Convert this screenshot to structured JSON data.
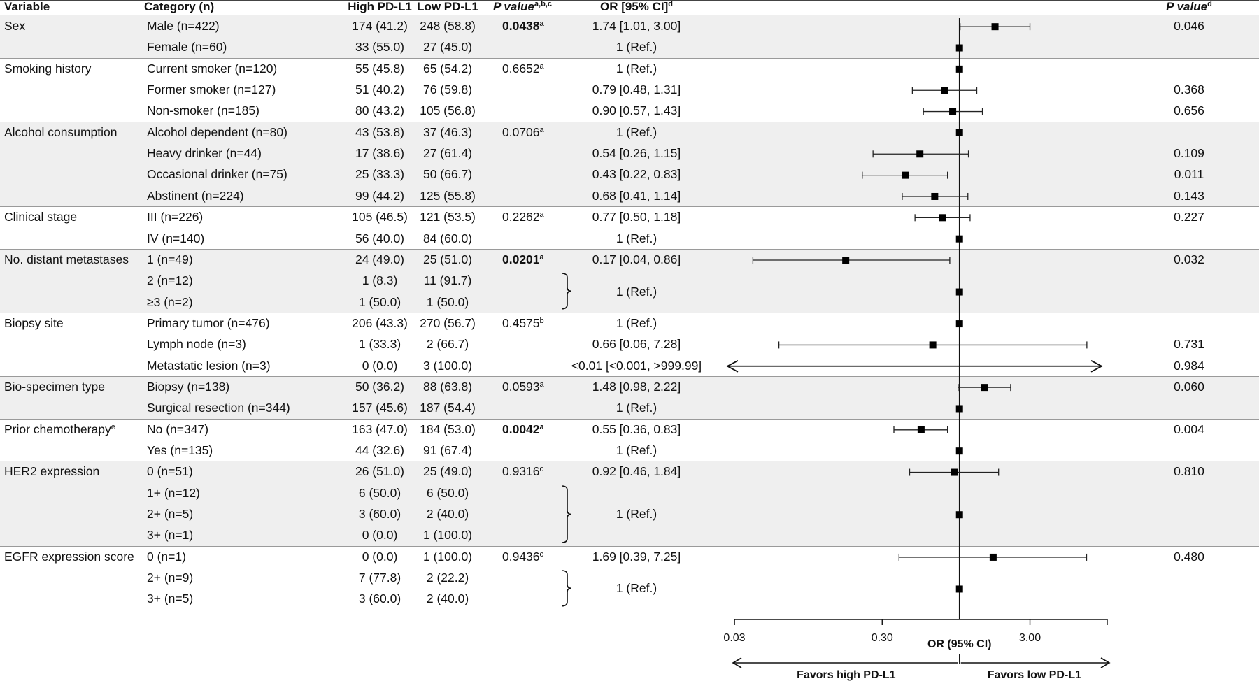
{
  "headers": {
    "variable": "Variable",
    "category": "Category (n)",
    "high": "High PD-L1",
    "low": "Low PD-L1",
    "p_value": "P value",
    "p_value_sup": "a,b,c",
    "or_ci": "OR [95% CI]",
    "or_ci_sup": "d",
    "p_value_right": "P value",
    "p_value_right_sup": "d"
  },
  "groups": [
    {
      "variable": "Sex",
      "variable_sup": "",
      "p_value": "0.0438",
      "p_sup": "a",
      "p_bold": true,
      "shaded": true,
      "rows": [
        {
          "category": "Male (n=422)",
          "high": "174 (41.2)",
          "low": "248 (58.8)",
          "or": "1.74 [1.01, 3.00]",
          "p": "0.046"
        },
        {
          "category": "Female (n=60)",
          "high": "33 (55.0)",
          "low": "27 (45.0)",
          "or": "1 (Ref.)",
          "p": ""
        }
      ]
    },
    {
      "variable": "Smoking history",
      "variable_sup": "",
      "p_value": "0.6652",
      "p_sup": "a",
      "p_bold": false,
      "shaded": false,
      "rows": [
        {
          "category": "Current smoker (n=120)",
          "high": "55 (45.8)",
          "low": "65 (54.2)",
          "or": "1 (Ref.)",
          "p": ""
        },
        {
          "category": "Former smoker (n=127)",
          "high": "51 (40.2)",
          "low": "76 (59.8)",
          "or": "0.79 [0.48, 1.31]",
          "p": "0.368"
        },
        {
          "category": "Non-smoker (n=185)",
          "high": "80 (43.2)",
          "low": "105 (56.8)",
          "or": "0.90 [0.57, 1.43]",
          "p": "0.656"
        }
      ]
    },
    {
      "variable": "Alcohol consumption",
      "variable_sup": "",
      "p_value": "0.0706",
      "p_sup": "a",
      "p_bold": false,
      "shaded": true,
      "rows": [
        {
          "category": "Alcohol dependent (n=80)",
          "high": "43 (53.8)",
          "low": "37 (46.3)",
          "or": "1 (Ref.)",
          "p": ""
        },
        {
          "category": "Heavy drinker (n=44)",
          "high": "17 (38.6)",
          "low": "27 (61.4)",
          "or": "0.54 [0.26, 1.15]",
          "p": "0.109"
        },
        {
          "category": "Occasional drinker (n=75)",
          "high": "25 (33.3)",
          "low": "50 (66.7)",
          "or": "0.43 [0.22, 0.83]",
          "p": "0.011"
        },
        {
          "category": "Abstinent (n=224)",
          "high": "99 (44.2)",
          "low": "125 (55.8)",
          "or": "0.68 [0.41, 1.14]",
          "p": "0.143"
        }
      ]
    },
    {
      "variable": "Clinical stage",
      "variable_sup": "",
      "p_value": "0.2262",
      "p_sup": "a",
      "p_bold": false,
      "shaded": false,
      "rows": [
        {
          "category": "III (n=226)",
          "high": "105 (46.5)",
          "low": "121 (53.5)",
          "or": "0.77 [0.50, 1.18]",
          "p": "0.227"
        },
        {
          "category": "IV (n=140)",
          "high": "56 (40.0)",
          "low": "84 (60.0)",
          "or": "1 (Ref.)",
          "p": ""
        }
      ]
    },
    {
      "variable": "No. distant metastases",
      "variable_sup": "",
      "p_value": "0.0201",
      "p_sup": "a",
      "p_bold": true,
      "shaded": true,
      "rows": [
        {
          "category": "1 (n=49)",
          "high": "24 (49.0)",
          "low": "25 (51.0)",
          "or": "0.17 [0.04, 0.86]",
          "p": "0.032"
        },
        {
          "category": "2 (n=12)",
          "high": "1 (8.3)",
          "low": "11 (91.7)",
          "or": "",
          "p": ""
        },
        {
          "category": "≥3 (n=2)",
          "high": "1 (50.0)",
          "low": "1 (50.0)",
          "or": "",
          "p": ""
        }
      ],
      "brace": {
        "from": 1,
        "to": 2,
        "label": "1 (Ref.)"
      }
    },
    {
      "variable": "Biopsy site",
      "variable_sup": "",
      "p_value": "0.4575",
      "p_sup": "b",
      "p_bold": false,
      "shaded": false,
      "rows": [
        {
          "category": "Primary tumor (n=476)",
          "high": "206 (43.3)",
          "low": "270 (56.7)",
          "or": "1 (Ref.)",
          "p": ""
        },
        {
          "category": "Lymph node (n=3)",
          "high": "1 (33.3)",
          "low": "2 (66.7)",
          "or": "0.66 [0.06, 7.28]",
          "p": "0.731"
        },
        {
          "category": "Metastatic lesion (n=3)",
          "high": "0 (0.0)",
          "low": "3 (100.0)",
          "or": "<0.01 [<0.001, >999.99]",
          "p": "0.984"
        }
      ]
    },
    {
      "variable": "Bio-specimen type",
      "variable_sup": "",
      "p_value": "0.0593",
      "p_sup": "a",
      "p_bold": false,
      "shaded": true,
      "rows": [
        {
          "category": "Biopsy (n=138)",
          "high": "50 (36.2)",
          "low": "88 (63.8)",
          "or": "1.48 [0.98, 2.22]",
          "p": "0.060"
        },
        {
          "category": "Surgical resection (n=344)",
          "high": "157 (45.6)",
          "low": "187 (54.4)",
          "or": "1 (Ref.)",
          "p": ""
        }
      ]
    },
    {
      "variable": "Prior chemotherapy",
      "variable_sup": "e",
      "p_value": "0.0042",
      "p_sup": "a",
      "p_bold": true,
      "shaded": false,
      "rows": [
        {
          "category": "No (n=347)",
          "high": "163 (47.0)",
          "low": "184 (53.0)",
          "or": "0.55 [0.36, 0.83]",
          "p": "0.004"
        },
        {
          "category": "Yes (n=135)",
          "high": "44 (32.6)",
          "low": "91 (67.4)",
          "or": "1 (Ref.)",
          "p": ""
        }
      ]
    },
    {
      "variable": "HER2 expression",
      "variable_sup": "",
      "p_value": "0.9316",
      "p_sup": "c",
      "p_bold": false,
      "shaded": true,
      "rows": [
        {
          "category": "0 (n=51)",
          "high": "26 (51.0)",
          "low": "25 (49.0)",
          "or": "0.92 [0.46, 1.84]",
          "p": "0.810"
        },
        {
          "category": "1+ (n=12)",
          "high": "6 (50.0)",
          "low": "6 (50.0)",
          "or": "",
          "p": ""
        },
        {
          "category": "2+ (n=5)",
          "high": "3 (60.0)",
          "low": "2 (40.0)",
          "or": "",
          "p": ""
        },
        {
          "category": "3+ (n=1)",
          "high": "0 (0.0)",
          "low": "1 (100.0)",
          "or": "",
          "p": ""
        }
      ],
      "brace": {
        "from": 1,
        "to": 3,
        "label": "1 (Ref.)"
      }
    },
    {
      "variable": "EGFR expression score",
      "variable_sup": "",
      "p_value": "0.9436",
      "p_sup": "c",
      "p_bold": false,
      "shaded": false,
      "rows": [
        {
          "category": "0 (n=1)",
          "high": "0 (0.0)",
          "low": "1 (100.0)",
          "or": "1.69 [0.39, 7.25]",
          "p": "0.480"
        },
        {
          "category": "2+ (n=9)",
          "high": "7 (77.8)",
          "low": "2 (22.2)",
          "or": "",
          "p": ""
        },
        {
          "category": "3+ (n=5)",
          "high": "3 (60.0)",
          "low": "2 (40.0)",
          "or": "",
          "p": ""
        }
      ],
      "brace": {
        "from": 1,
        "to": 2,
        "label": "1 (Ref.)"
      }
    }
  ],
  "chart_data": {
    "type": "forest",
    "x_scale": "log",
    "xlim": [
      0.03,
      10
    ],
    "ref_line": 1,
    "xticks": [
      0.03,
      0.3,
      3
    ],
    "xtick_labels": [
      "0.03",
      "0.30",
      "3.00"
    ],
    "xlabel": "OR (95% CI)",
    "direction_labels": {
      "left": "Favors high PD-L1",
      "right": "Favors low PD-L1"
    },
    "marker_color": "#000000",
    "points": [
      {
        "row": 0,
        "or": 1.74,
        "lo": 1.01,
        "hi": 3.0
      },
      {
        "row": 1,
        "or": 1,
        "ref": true
      },
      {
        "row": 2,
        "or": 1,
        "ref": true
      },
      {
        "row": 3,
        "or": 0.79,
        "lo": 0.48,
        "hi": 1.31
      },
      {
        "row": 4,
        "or": 0.9,
        "lo": 0.57,
        "hi": 1.43
      },
      {
        "row": 5,
        "or": 1,
        "ref": true
      },
      {
        "row": 6,
        "or": 0.54,
        "lo": 0.26,
        "hi": 1.15
      },
      {
        "row": 7,
        "or": 0.43,
        "lo": 0.22,
        "hi": 0.83
      },
      {
        "row": 8,
        "or": 0.68,
        "lo": 0.41,
        "hi": 1.14
      },
      {
        "row": 9,
        "or": 0.77,
        "lo": 0.5,
        "hi": 1.18
      },
      {
        "row": 10,
        "or": 1,
        "ref": true
      },
      {
        "row": 11,
        "or": 0.17,
        "lo": 0.04,
        "hi": 0.86
      },
      {
        "row": 12.5,
        "or": 1,
        "ref": true
      },
      {
        "row": 14,
        "or": 1,
        "ref": true
      },
      {
        "row": 15,
        "or": 0.66,
        "lo": 0.06,
        "hi": 7.28
      },
      {
        "row": 16,
        "or": 0.01,
        "lo": 0.001,
        "hi": 999.99,
        "arrow_both": true,
        "no_marker": true
      },
      {
        "row": 17,
        "or": 1.48,
        "lo": 0.98,
        "hi": 2.22
      },
      {
        "row": 18,
        "or": 1,
        "ref": true
      },
      {
        "row": 19,
        "or": 0.55,
        "lo": 0.36,
        "hi": 0.83
      },
      {
        "row": 20,
        "or": 1,
        "ref": true
      },
      {
        "row": 21,
        "or": 0.92,
        "lo": 0.46,
        "hi": 1.84
      },
      {
        "row": 23,
        "or": 1,
        "ref": true
      },
      {
        "row": 25,
        "or": 1.69,
        "lo": 0.39,
        "hi": 7.25
      },
      {
        "row": 26.5,
        "or": 1,
        "ref": true
      }
    ]
  }
}
